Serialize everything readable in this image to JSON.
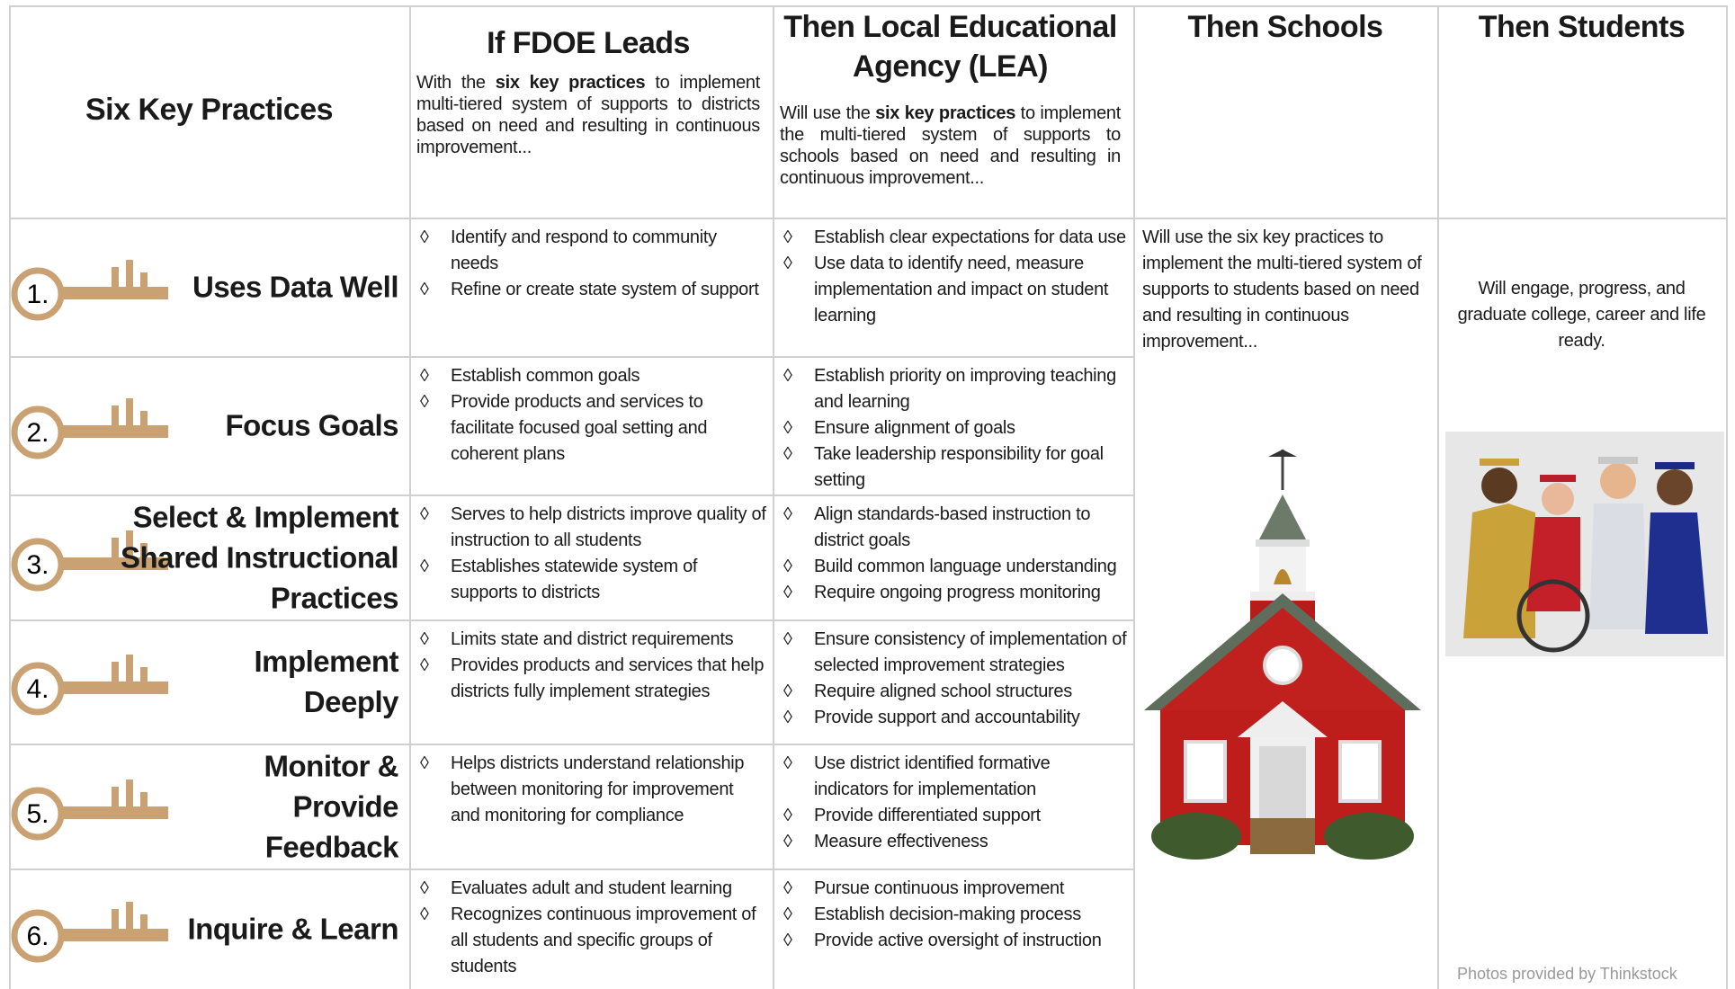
{
  "header": {
    "practices_title": "Six Key Practices",
    "fdoe": {
      "title": "If FDOE Leads",
      "intro": [
        "With the ",
        "six key practices",
        " to implement multi-tiered system of supports to districts based on need and resulting in continuous improvement..."
      ]
    },
    "lea": {
      "title": "Then Local Educational Agency (LEA)",
      "intro": [
        "Will use the ",
        "six key practices",
        " to implement the multi-tiered system of supports to schools based on need and resulting in continuous improvement..."
      ]
    },
    "schools": {
      "title": "Then Schools"
    },
    "students": {
      "title": "Then Students"
    }
  },
  "rows": [
    {
      "number": "1.",
      "practice": "Uses Data Well",
      "fdoe": [
        "Identify and respond to community needs",
        "Refine or create state system of support"
      ],
      "lea": [
        "Establish clear expectations for data use",
        "Use data to identify need, measure implementation and impact on student learning"
      ]
    },
    {
      "number": "2.",
      "practice": "Focus Goals",
      "fdoe": [
        "Establish common goals",
        "Provide products and services to facilitate focused goal setting and coherent plans"
      ],
      "lea": [
        "Establish priority on improving teaching and learning",
        "Ensure alignment of goals",
        "Take leadership responsibility for goal setting"
      ]
    },
    {
      "number": "3.",
      "practice": "Select & Implement Shared Instructional Practices",
      "fdoe": [
        "Serves to help districts improve quality of instruction to all students",
        "Establishes statewide system of supports to districts"
      ],
      "lea": [
        "Align standards-based instruction to district goals",
        "Build common language understanding",
        "Require ongoing progress monitoring"
      ]
    },
    {
      "number": "4.",
      "practice": "Implement Deeply",
      "fdoe": [
        "Limits state and district requirements",
        "Provides products and services that help districts fully implement strategies"
      ],
      "lea": [
        "Ensure consistency of implementation of selected improvement strategies",
        "Require aligned school structures",
        "Provide support and accountability"
      ]
    },
    {
      "number": "5.",
      "practice": "Monitor & Provide Feedback",
      "fdoe": [
        "Helps districts understand relationship between monitoring for improvement and monitoring for compliance"
      ],
      "lea": [
        "Use district identified formative indicators for implementation",
        "Provide differentiated support",
        "Measure effectiveness"
      ]
    },
    {
      "number": "6.",
      "practice": "Inquire & Learn",
      "fdoe": [
        "Evaluates adult and student learning",
        "Recognizes continuous improvement of all students and specific groups of students"
      ],
      "lea": [
        "Pursue continuous improvement",
        "Establish decision-making process",
        "Provide active oversight of instruction"
      ]
    }
  ],
  "schools_text": "Will use the six key practices to implement the multi-tiered system of supports to students based on need and resulting in continuous improvement...",
  "students_text": "Will engage, progress, and graduate college, career and life ready.",
  "photo_credit": "Photos provided by Thinkstock"
}
